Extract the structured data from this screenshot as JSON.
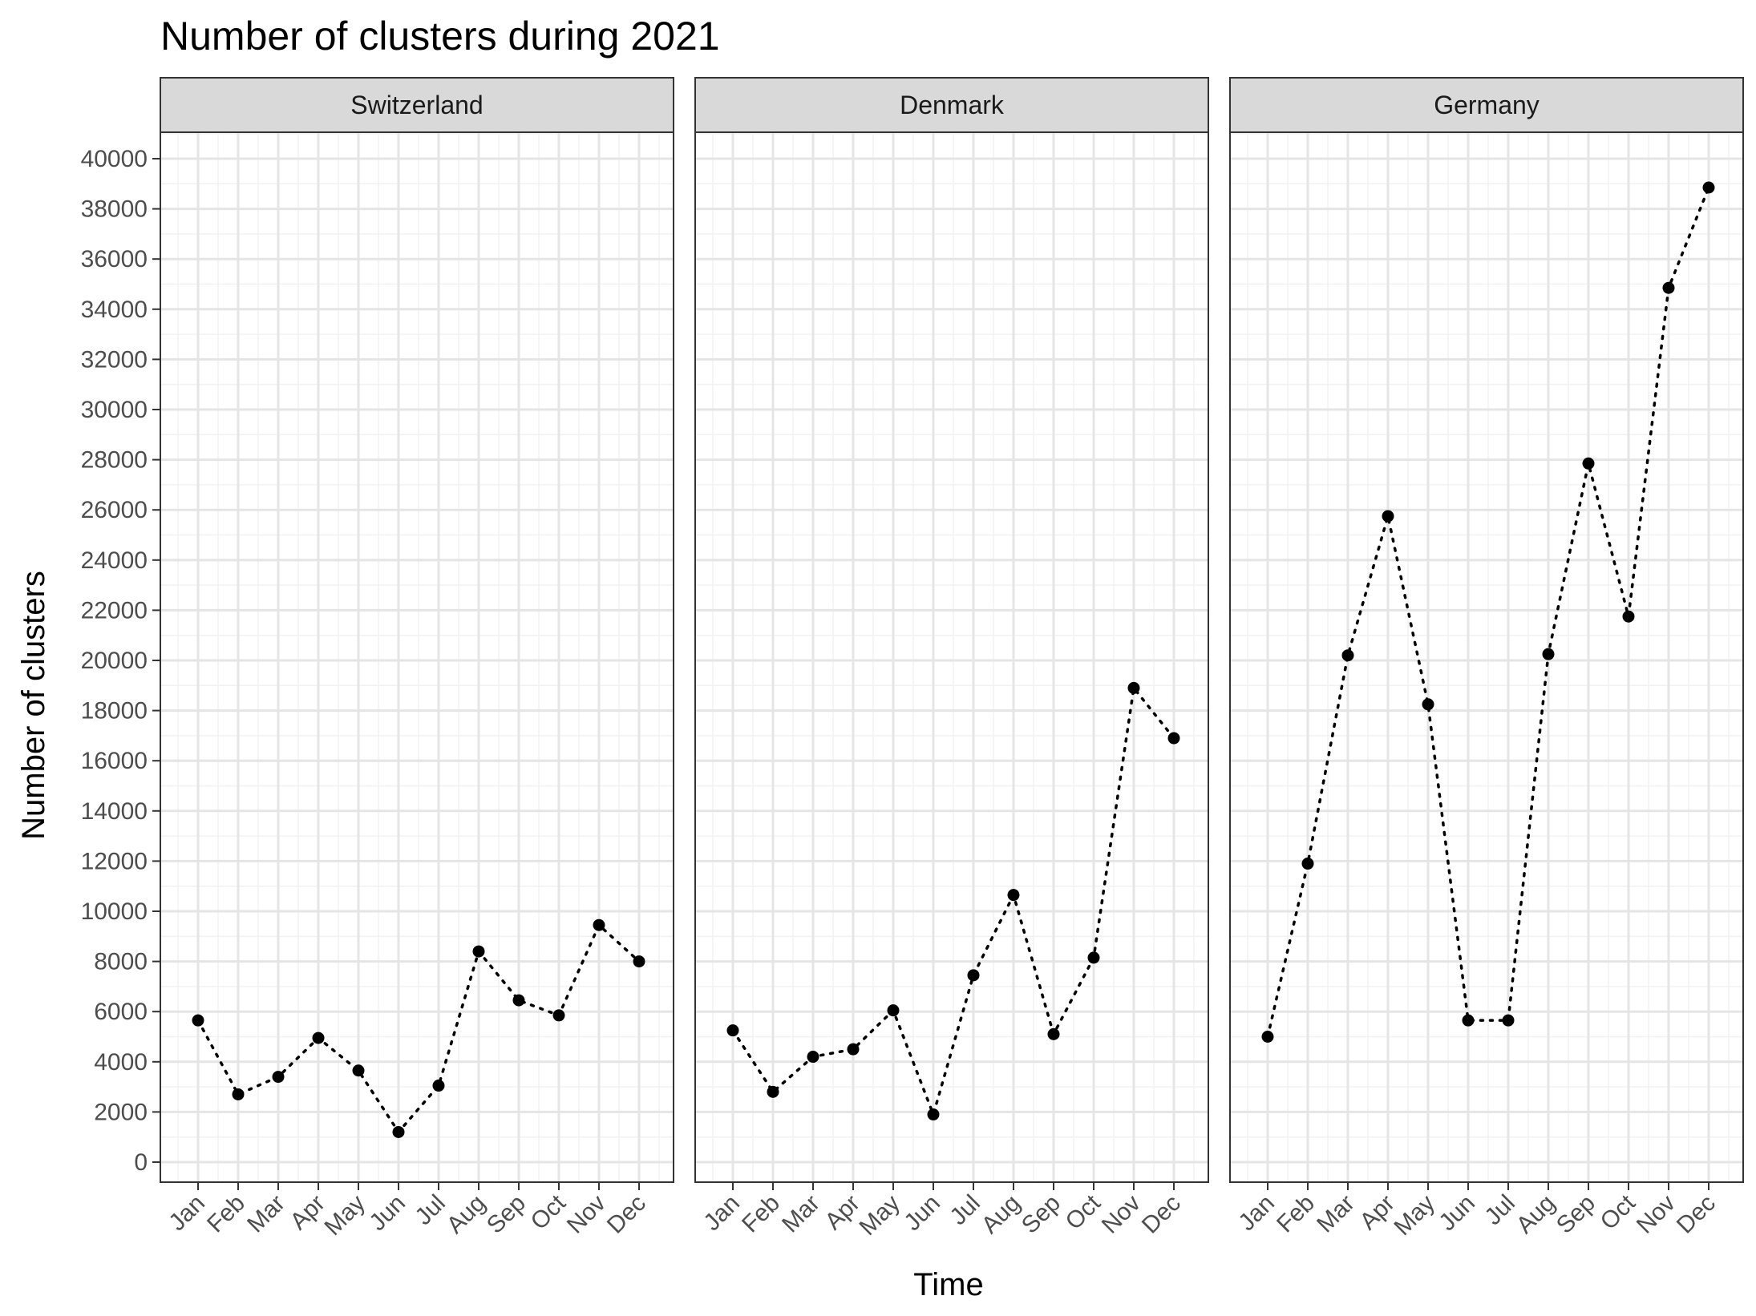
{
  "chart_data": {
    "type": "line",
    "title": "Number of clusters during 2021",
    "xlabel": "Time",
    "ylabel": "Number of clusters",
    "categories": [
      "Jan",
      "Feb",
      "Mar",
      "Apr",
      "May",
      "Jun",
      "Jul",
      "Aug",
      "Sep",
      "Oct",
      "Nov",
      "Dec"
    ],
    "ylim": [
      0,
      40000
    ],
    "yticks": [
      0,
      2000,
      4000,
      6000,
      8000,
      10000,
      12000,
      14000,
      16000,
      18000,
      20000,
      22000,
      24000,
      26000,
      28000,
      30000,
      32000,
      34000,
      36000,
      38000,
      40000
    ],
    "grid": true,
    "line_style": "dotted",
    "point_color": "#000000",
    "facets": [
      {
        "name": "Switzerland",
        "values": [
          5650,
          2700,
          3400,
          4950,
          3650,
          1200,
          3050,
          8400,
          6450,
          5850,
          9450,
          8000
        ]
      },
      {
        "name": "Denmark",
        "values": [
          5250,
          2800,
          4200,
          4500,
          6050,
          1900,
          7450,
          10650,
          5100,
          8150,
          18900,
          16900
        ]
      },
      {
        "name": "Germany",
        "values": [
          5000,
          11900,
          20200,
          25750,
          18250,
          5650,
          5650,
          20250,
          27850,
          21750,
          34850,
          38850
        ]
      }
    ]
  }
}
